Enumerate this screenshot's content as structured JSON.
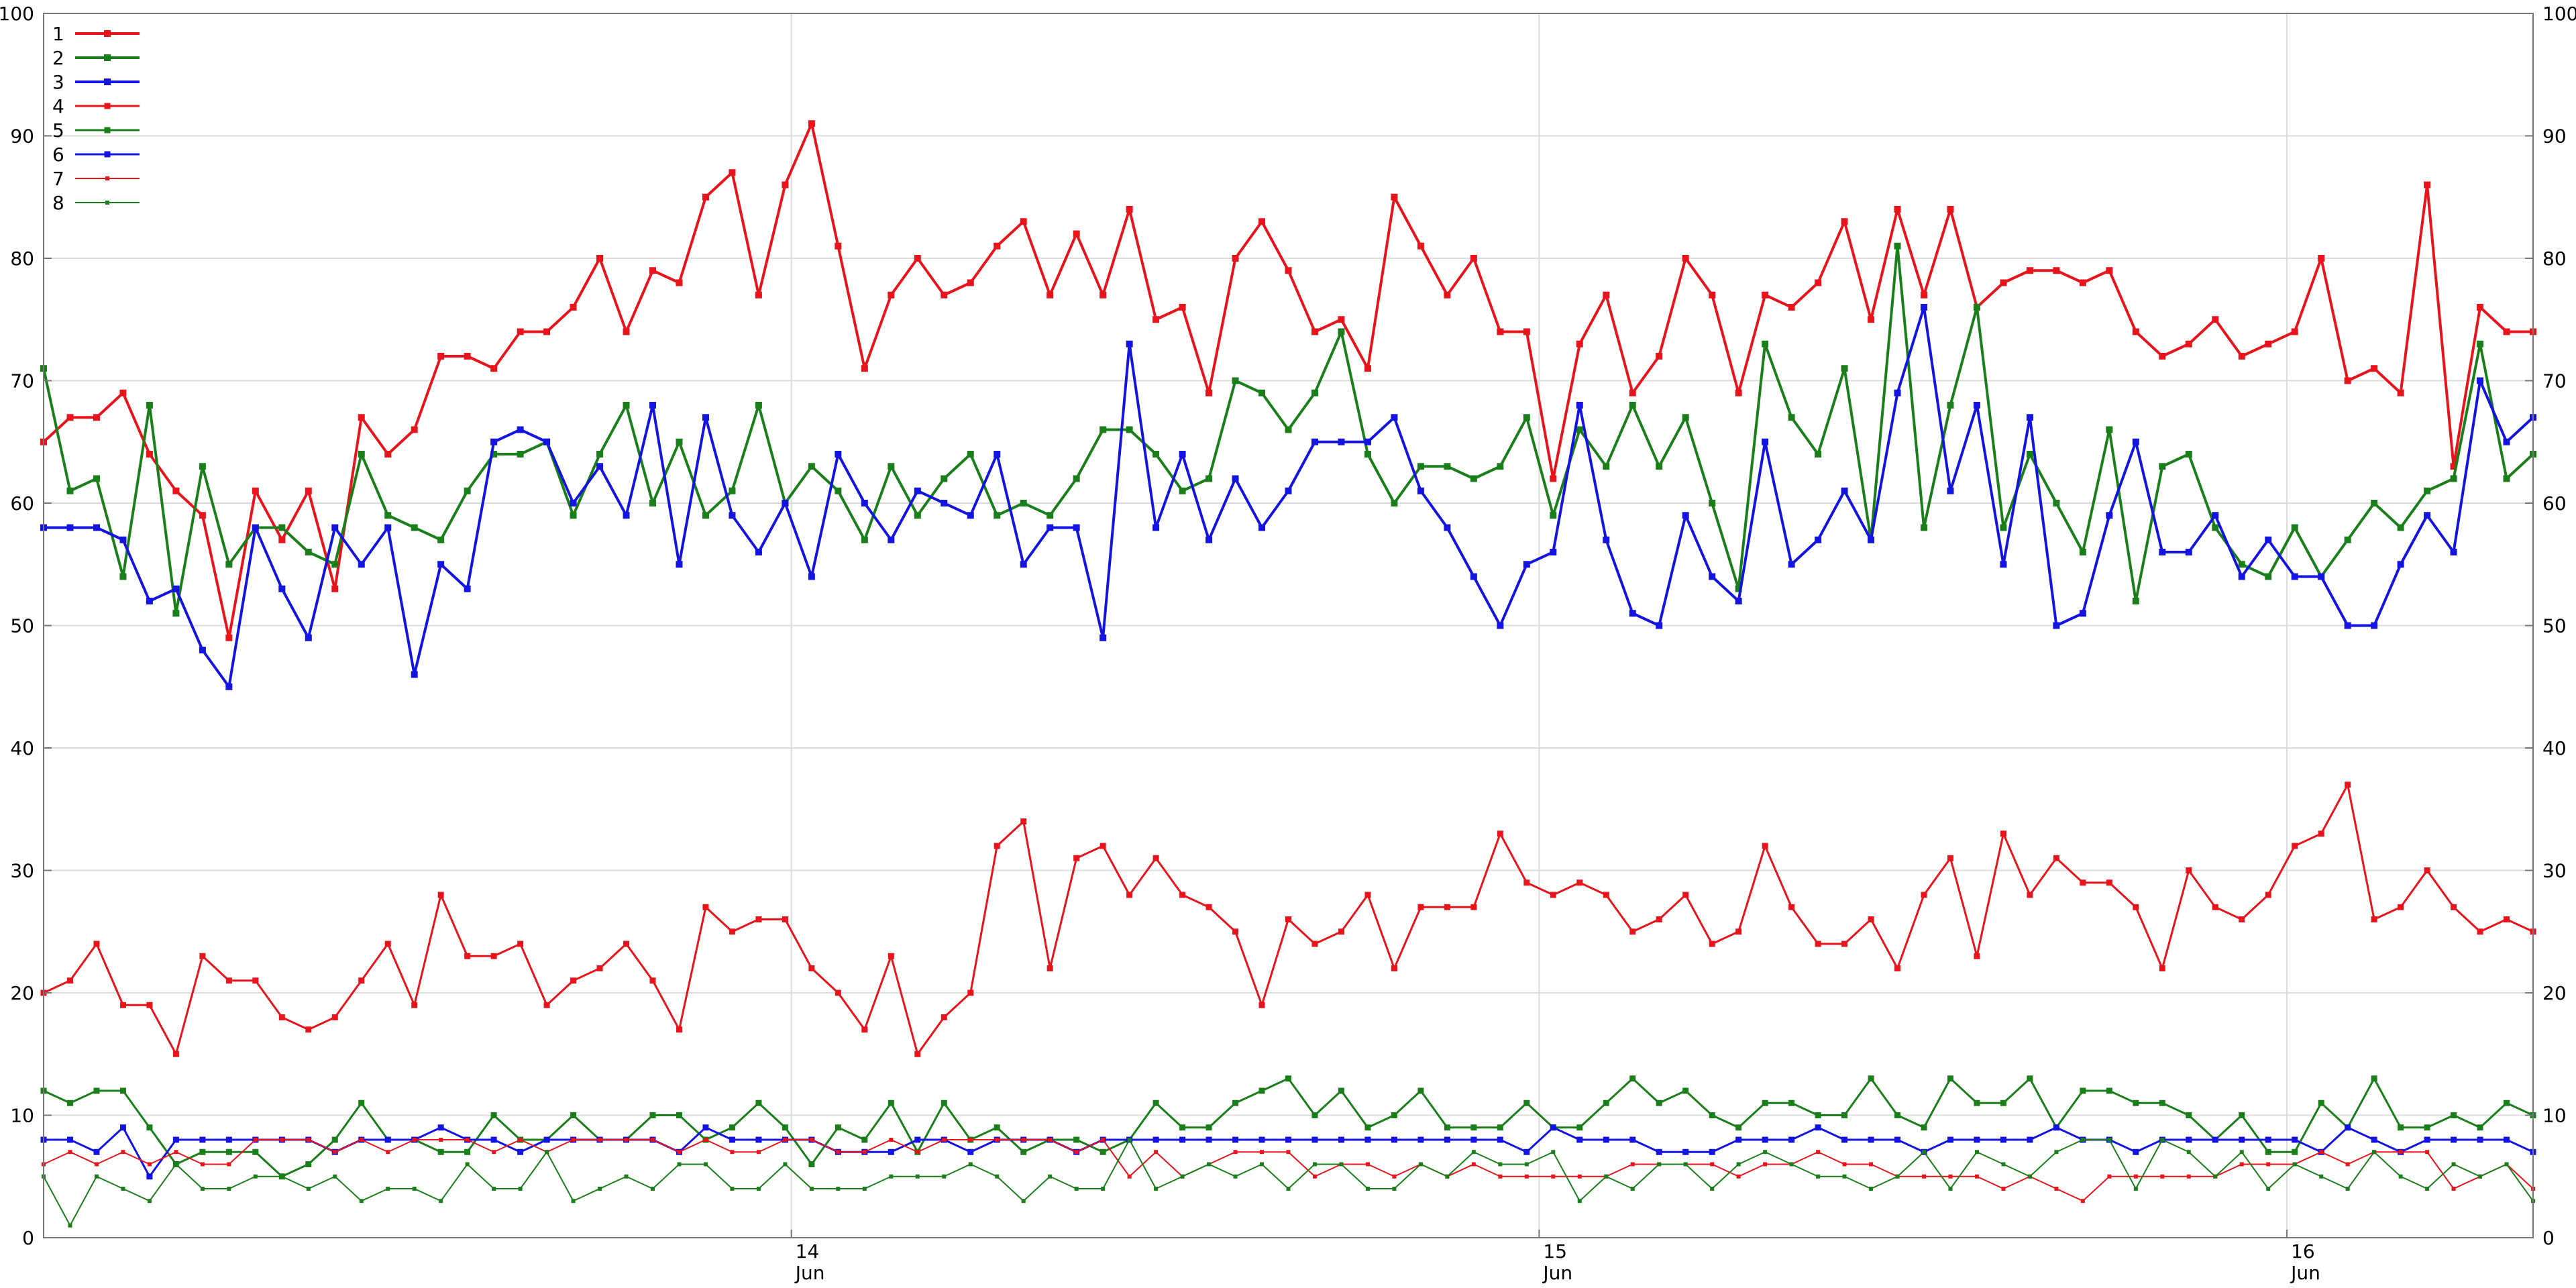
{
  "chart_data": {
    "type": "line",
    "x_start": "2014-06-13 00:00",
    "x_step_hours": 0.85,
    "ylim": [
      0,
      100
    ],
    "yticks": [
      0,
      10,
      20,
      30,
      40,
      50,
      60,
      70,
      80,
      90,
      100
    ],
    "ytick_labels": [
      "0",
      "10",
      "20",
      "30",
      "40",
      "50",
      "60",
      "70",
      "80",
      "90",
      "100"
    ],
    "xticks": [
      {
        "day": "14",
        "month": "Jun"
      },
      {
        "day": "15",
        "month": "Jun"
      },
      {
        "day": "16",
        "month": "Jun"
      }
    ],
    "xtick_hours": [
      24,
      48,
      72
    ],
    "grid": true,
    "legend_position": "top-left",
    "series": [
      {
        "name": "1",
        "color": "#e8141c",
        "values": [
          65,
          67,
          67,
          69,
          64,
          61,
          59,
          49,
          61,
          57,
          61,
          53,
          67,
          64,
          66,
          72,
          72,
          71,
          74,
          74,
          76,
          80,
          74,
          79,
          78,
          85,
          87,
          77,
          86,
          91,
          81,
          71,
          77,
          80,
          77,
          78,
          81,
          83,
          77,
          82,
          77,
          84,
          75,
          76,
          69,
          80,
          83,
          79,
          74,
          75,
          71,
          85,
          81,
          77,
          80,
          74,
          74,
          62,
          73,
          77,
          69,
          72,
          80,
          77,
          69,
          77,
          76,
          78,
          83,
          75,
          84,
          77,
          84,
          76,
          78,
          79,
          79,
          78,
          79,
          74,
          72,
          73,
          75,
          72,
          73,
          74,
          80,
          70,
          71,
          69,
          86,
          63,
          76,
          74,
          74
        ]
      },
      {
        "name": "2",
        "color": "#1a7f1a",
        "values": [
          71,
          61,
          62,
          54,
          68,
          51,
          63,
          55,
          58,
          58,
          56,
          55,
          64,
          59,
          58,
          57,
          61,
          64,
          64,
          65,
          59,
          64,
          68,
          60,
          65,
          59,
          61,
          68,
          60,
          63,
          61,
          57,
          63,
          59,
          62,
          64,
          59,
          60,
          59,
          62,
          66,
          66,
          64,
          61,
          62,
          70,
          69,
          66,
          69,
          74,
          64,
          60,
          63,
          63,
          62,
          63,
          67,
          59,
          66,
          63,
          68,
          63,
          67,
          60,
          53,
          73,
          67,
          64,
          71,
          57,
          81,
          58,
          68,
          76,
          58,
          64,
          60,
          56,
          66,
          52,
          63,
          64,
          58,
          55,
          54,
          58,
          54,
          57,
          60,
          58,
          61,
          62,
          73,
          62,
          64
        ]
      },
      {
        "name": "3",
        "color": "#1414e0",
        "values": [
          58,
          58,
          58,
          57,
          52,
          53,
          48,
          45,
          58,
          53,
          49,
          58,
          55,
          58,
          46,
          55,
          53,
          65,
          66,
          65,
          60,
          63,
          59,
          68,
          55,
          67,
          59,
          56,
          60,
          54,
          64,
          60,
          57,
          61,
          60,
          59,
          64,
          55,
          58,
          58,
          49,
          73,
          58,
          64,
          57,
          62,
          58,
          61,
          65,
          65,
          65,
          67,
          61,
          58,
          54,
          50,
          55,
          56,
          68,
          57,
          51,
          50,
          59,
          54,
          52,
          65,
          55,
          57,
          61,
          57,
          69,
          76,
          61,
          68,
          55,
          67,
          50,
          51,
          59,
          65,
          56,
          56,
          59,
          54,
          57,
          54,
          54,
          50,
          50,
          55,
          59,
          56,
          70,
          65,
          67
        ]
      },
      {
        "name": "4",
        "color": "#e8141c",
        "values": [
          20,
          21,
          24,
          19,
          19,
          15,
          23,
          21,
          21,
          18,
          17,
          18,
          21,
          24,
          19,
          28,
          23,
          23,
          24,
          19,
          21,
          22,
          24,
          21,
          17,
          27,
          25,
          26,
          26,
          22,
          20,
          17,
          23,
          15,
          18,
          20,
          32,
          34,
          22,
          31,
          32,
          28,
          31,
          28,
          27,
          25,
          19,
          26,
          24,
          25,
          28,
          22,
          27,
          27,
          27,
          33,
          29,
          28,
          29,
          28,
          25,
          26,
          28,
          24,
          25,
          32,
          27,
          24,
          24,
          26,
          22,
          28,
          31,
          23,
          33,
          28,
          31,
          29,
          29,
          27,
          22,
          30,
          27,
          26,
          28,
          32,
          33,
          37,
          26,
          27,
          30,
          27,
          25,
          26,
          25
        ]
      },
      {
        "name": "5",
        "color": "#1a7f1a",
        "values": [
          12,
          11,
          12,
          12,
          9,
          6,
          7,
          7,
          7,
          5,
          6,
          8,
          11,
          8,
          8,
          7,
          7,
          10,
          8,
          8,
          10,
          8,
          8,
          10,
          10,
          8,
          9,
          11,
          9,
          6,
          9,
          8,
          11,
          7,
          11,
          8,
          9,
          7,
          8,
          8,
          7,
          8,
          11,
          9,
          9,
          11,
          12,
          13,
          10,
          12,
          9,
          10,
          12,
          9,
          9,
          9,
          11,
          9,
          9,
          11,
          13,
          11,
          12,
          10,
          9,
          11,
          11,
          10,
          10,
          13,
          10,
          9,
          13,
          11,
          11,
          13,
          9,
          12,
          12,
          11,
          11,
          10,
          8,
          10,
          7,
          7,
          11,
          9,
          13,
          9,
          9,
          10,
          9,
          11,
          10
        ]
      },
      {
        "name": "6",
        "color": "#1414e0",
        "values": [
          8,
          8,
          7,
          9,
          5,
          8,
          8,
          8,
          8,
          8,
          8,
          7,
          8,
          8,
          8,
          9,
          8,
          8,
          7,
          8,
          8,
          8,
          8,
          8,
          7,
          9,
          8,
          8,
          8,
          8,
          7,
          7,
          7,
          8,
          8,
          7,
          8,
          8,
          8,
          7,
          8,
          8,
          8,
          8,
          8,
          8,
          8,
          8,
          8,
          8,
          8,
          8,
          8,
          8,
          8,
          8,
          7,
          9,
          8,
          8,
          8,
          7,
          7,
          7,
          8,
          8,
          8,
          9,
          8,
          8,
          8,
          7,
          8,
          8,
          8,
          8,
          9,
          8,
          8,
          7,
          8,
          8,
          8,
          8,
          8,
          8,
          7,
          9,
          8,
          7,
          8,
          8,
          8,
          8,
          7
        ]
      },
      {
        "name": "7",
        "color": "#e8141c",
        "values": [
          6,
          7,
          6,
          7,
          6,
          7,
          6,
          6,
          8,
          8,
          8,
          7,
          8,
          7,
          8,
          8,
          8,
          7,
          8,
          7,
          8,
          8,
          8,
          8,
          7,
          8,
          7,
          7,
          8,
          8,
          7,
          7,
          8,
          7,
          8,
          8,
          8,
          8,
          8,
          7,
          8,
          5,
          7,
          5,
          6,
          7,
          7,
          7,
          5,
          6,
          6,
          5,
          6,
          5,
          6,
          5,
          5,
          5,
          5,
          5,
          6,
          6,
          6,
          6,
          5,
          6,
          6,
          7,
          6,
          6,
          5,
          5,
          5,
          5,
          4,
          5,
          4,
          3,
          5,
          5,
          5,
          5,
          5,
          6,
          6,
          6,
          7,
          6,
          7,
          7,
          7,
          4,
          5,
          6,
          4
        ]
      },
      {
        "name": "8",
        "color": "#1a7f1a",
        "values": [
          5,
          1,
          5,
          4,
          3,
          6,
          4,
          4,
          5,
          5,
          4,
          5,
          3,
          4,
          4,
          3,
          6,
          4,
          4,
          7,
          3,
          4,
          5,
          4,
          6,
          6,
          4,
          4,
          6,
          4,
          4,
          4,
          5,
          5,
          5,
          6,
          5,
          3,
          5,
          4,
          4,
          8,
          4,
          5,
          6,
          5,
          6,
          4,
          6,
          6,
          4,
          4,
          6,
          5,
          7,
          6,
          6,
          7,
          3,
          5,
          4,
          6,
          6,
          4,
          6,
          7,
          6,
          5,
          5,
          4,
          5,
          7,
          4,
          7,
          6,
          5,
          7,
          8,
          8,
          4,
          8,
          7,
          5,
          7,
          4,
          6,
          5,
          4,
          7,
          5,
          4,
          6,
          5,
          6,
          3
        ]
      }
    ]
  }
}
